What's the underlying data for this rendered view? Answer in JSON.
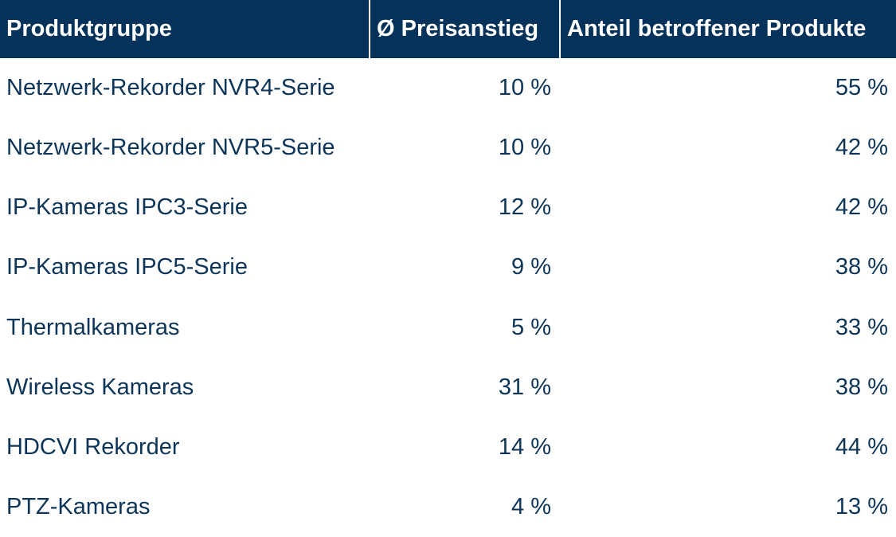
{
  "table": {
    "header": [
      "Produktgruppe",
      "Ø Preisanstieg",
      "Anteil betroffener Produkte"
    ],
    "rows": [
      [
        "Netzwerk-Rekorder NVR4-Serie",
        "10 %",
        "55 %"
      ],
      [
        "Netzwerk-Rekorder NVR5-Serie",
        "10 %",
        "42 %"
      ],
      [
        "IP-Kameras IPC3-Serie",
        "12 %",
        "42 %"
      ],
      [
        "IP-Kameras IPC5-Serie",
        "9 %",
        "38 %"
      ],
      [
        "Thermalkameras",
        "5 %",
        "33 %"
      ],
      [
        "Wireless Kameras",
        "31 %",
        "38 %"
      ],
      [
        "HDCVI Rekorder",
        "14 %",
        "44 %"
      ],
      [
        "PTZ-Kameras",
        "4 %",
        "13 %"
      ]
    ]
  }
}
